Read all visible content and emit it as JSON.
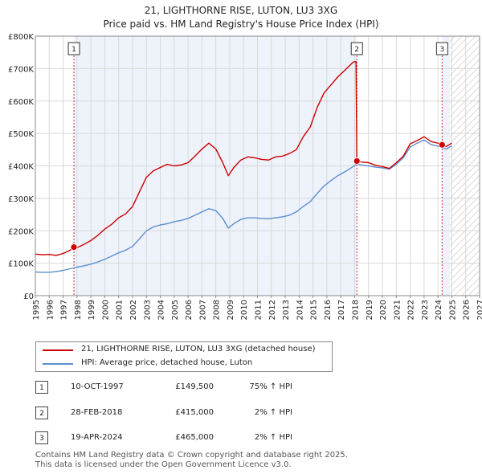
{
  "chart_data": {
    "type": "line",
    "title": "21, LIGHTHORNE RISE, LUTON, LU3 3XG",
    "subtitle": "Price paid vs. HM Land Registry's House Price Index (HPI)",
    "xlim": [
      1995,
      2027
    ],
    "ylim": [
      0,
      800000
    ],
    "x_ticks": [
      "1995",
      "1996",
      "1997",
      "1998",
      "1999",
      "2000",
      "2001",
      "2002",
      "2003",
      "2004",
      "2005",
      "2006",
      "2007",
      "2008",
      "2009",
      "2010",
      "2011",
      "2012",
      "2013",
      "2014",
      "2015",
      "2016",
      "2017",
      "2018",
      "2019",
      "2020",
      "2021",
      "2022",
      "2023",
      "2024",
      "2025",
      "2026",
      "2027"
    ],
    "y_ticks": [
      {
        "value": 0,
        "label": "£0"
      },
      {
        "value": 100000,
        "label": "£100K"
      },
      {
        "value": 200000,
        "label": "£200K"
      },
      {
        "value": 300000,
        "label": "£300K"
      },
      {
        "value": 400000,
        "label": "£400K"
      },
      {
        "value": 500000,
        "label": "£500K"
      },
      {
        "value": 600000,
        "label": "£600K"
      },
      {
        "value": 700000,
        "label": "£700K"
      },
      {
        "value": 800000,
        "label": "£800K"
      }
    ],
    "grid": true,
    "shaded_periods": [
      [
        1997.78,
        2018.16
      ],
      [
        2024.3,
        2024.85
      ]
    ],
    "future_from": 2024.85,
    "series": [
      {
        "name": "21, LIGHTHORNE RISE, LUTON, LU3 3XG (detached house)",
        "color": "#cc0000",
        "points": [
          [
            1995.0,
            128000
          ],
          [
            1995.5,
            126000
          ],
          [
            1996.0,
            127000
          ],
          [
            1996.5,
            124000
          ],
          [
            1997.0,
            130000
          ],
          [
            1997.5,
            140000
          ],
          [
            1997.78,
            149500
          ],
          [
            1998.0,
            148000
          ],
          [
            1998.5,
            158000
          ],
          [
            1999.0,
            170000
          ],
          [
            1999.5,
            186000
          ],
          [
            2000.0,
            205000
          ],
          [
            2000.5,
            220000
          ],
          [
            2001.0,
            240000
          ],
          [
            2001.5,
            252000
          ],
          [
            2002.0,
            275000
          ],
          [
            2002.5,
            320000
          ],
          [
            2003.0,
            365000
          ],
          [
            2003.5,
            385000
          ],
          [
            2004.0,
            395000
          ],
          [
            2004.5,
            405000
          ],
          [
            2005.0,
            400000
          ],
          [
            2005.5,
            403000
          ],
          [
            2006.0,
            410000
          ],
          [
            2006.5,
            430000
          ],
          [
            2007.0,
            452000
          ],
          [
            2007.5,
            470000
          ],
          [
            2008.0,
            452000
          ],
          [
            2008.5,
            410000
          ],
          [
            2008.9,
            370000
          ],
          [
            2009.3,
            395000
          ],
          [
            2009.8,
            418000
          ],
          [
            2010.3,
            428000
          ],
          [
            2010.8,
            425000
          ],
          [
            2011.3,
            420000
          ],
          [
            2011.8,
            418000
          ],
          [
            2012.3,
            428000
          ],
          [
            2012.8,
            430000
          ],
          [
            2013.3,
            438000
          ],
          [
            2013.8,
            450000
          ],
          [
            2014.3,
            490000
          ],
          [
            2014.8,
            520000
          ],
          [
            2015.3,
            580000
          ],
          [
            2015.8,
            625000
          ],
          [
            2016.3,
            650000
          ],
          [
            2016.8,
            675000
          ],
          [
            2017.3,
            695000
          ],
          [
            2017.9,
            720000
          ],
          [
            2018.1,
            722000
          ],
          [
            2018.16,
            415000
          ],
          [
            2018.5,
            412000
          ],
          [
            2019.0,
            410000
          ],
          [
            2019.5,
            402000
          ],
          [
            2020.0,
            398000
          ],
          [
            2020.5,
            392000
          ],
          [
            2021.0,
            410000
          ],
          [
            2021.5,
            430000
          ],
          [
            2022.0,
            468000
          ],
          [
            2022.5,
            478000
          ],
          [
            2023.0,
            490000
          ],
          [
            2023.5,
            475000
          ],
          [
            2024.0,
            470000
          ],
          [
            2024.3,
            465000
          ],
          [
            2024.6,
            460000
          ],
          [
            2025.0,
            470000
          ]
        ]
      },
      {
        "name": "HPI: Average price, detached house, Luton",
        "color": "#5b8fcf",
        "points": [
          [
            1995.0,
            73000
          ],
          [
            1995.5,
            72000
          ],
          [
            1996.0,
            72000
          ],
          [
            1996.5,
            74000
          ],
          [
            1997.0,
            78000
          ],
          [
            1997.5,
            83000
          ],
          [
            1997.78,
            85500
          ],
          [
            1998.0,
            88000
          ],
          [
            1998.5,
            92000
          ],
          [
            1999.0,
            97000
          ],
          [
            1999.5,
            104000
          ],
          [
            2000.0,
            112000
          ],
          [
            2000.5,
            122000
          ],
          [
            2001.0,
            132000
          ],
          [
            2001.5,
            140000
          ],
          [
            2002.0,
            152000
          ],
          [
            2002.5,
            175000
          ],
          [
            2003.0,
            200000
          ],
          [
            2003.5,
            212000
          ],
          [
            2004.0,
            218000
          ],
          [
            2004.5,
            222000
          ],
          [
            2005.0,
            228000
          ],
          [
            2005.5,
            232000
          ],
          [
            2006.0,
            238000
          ],
          [
            2006.5,
            248000
          ],
          [
            2007.0,
            258000
          ],
          [
            2007.5,
            268000
          ],
          [
            2008.0,
            262000
          ],
          [
            2008.5,
            238000
          ],
          [
            2008.9,
            208000
          ],
          [
            2009.3,
            222000
          ],
          [
            2009.8,
            235000
          ],
          [
            2010.3,
            240000
          ],
          [
            2010.8,
            240000
          ],
          [
            2011.3,
            238000
          ],
          [
            2011.8,
            237000
          ],
          [
            2012.3,
            240000
          ],
          [
            2012.8,
            243000
          ],
          [
            2013.3,
            248000
          ],
          [
            2013.8,
            258000
          ],
          [
            2014.3,
            275000
          ],
          [
            2014.8,
            290000
          ],
          [
            2015.3,
            315000
          ],
          [
            2015.8,
            338000
          ],
          [
            2016.3,
            355000
          ],
          [
            2016.8,
            370000
          ],
          [
            2017.3,
            382000
          ],
          [
            2017.9,
            398000
          ],
          [
            2018.16,
            406000
          ],
          [
            2018.5,
            403000
          ],
          [
            2019.0,
            400000
          ],
          [
            2019.5,
            396000
          ],
          [
            2020.0,
            394000
          ],
          [
            2020.5,
            390000
          ],
          [
            2021.0,
            405000
          ],
          [
            2021.5,
            425000
          ],
          [
            2022.0,
            458000
          ],
          [
            2022.5,
            470000
          ],
          [
            2023.0,
            480000
          ],
          [
            2023.5,
            466000
          ],
          [
            2024.0,
            461000
          ],
          [
            2024.3,
            456000
          ],
          [
            2024.6,
            452000
          ],
          [
            2025.0,
            462000
          ]
        ]
      }
    ],
    "markers": [
      {
        "label": "1",
        "x": 1997.78,
        "y": 149500
      },
      {
        "label": "2",
        "x": 2018.16,
        "y": 415000
      },
      {
        "label": "3",
        "x": 2024.3,
        "y": 465000
      }
    ]
  },
  "legend": {
    "property_label": "21, LIGHTHORNE RISE, LUTON, LU3 3XG (detached house)",
    "hpi_label": "HPI: Average price, detached house, Luton"
  },
  "sales": [
    {
      "num": "1",
      "date": "10-OCT-1997",
      "price": "£149,500",
      "hpi": "75% ↑ HPI"
    },
    {
      "num": "2",
      "date": "28-FEB-2018",
      "price": "£415,000",
      "hpi": "2% ↑ HPI"
    },
    {
      "num": "3",
      "date": "19-APR-2024",
      "price": "£465,000",
      "hpi": "2% ↑ HPI"
    }
  ],
  "footer": {
    "line1": "Contains HM Land Registry data © Crown copyright and database right 2025.",
    "line2": "This data is licensed under the Open Government Licence v3.0."
  },
  "colors": {
    "property": "#cc0000",
    "hpi": "#5b8fcf",
    "shade": "#eef2fb",
    "grid": "#d8d8d8"
  }
}
